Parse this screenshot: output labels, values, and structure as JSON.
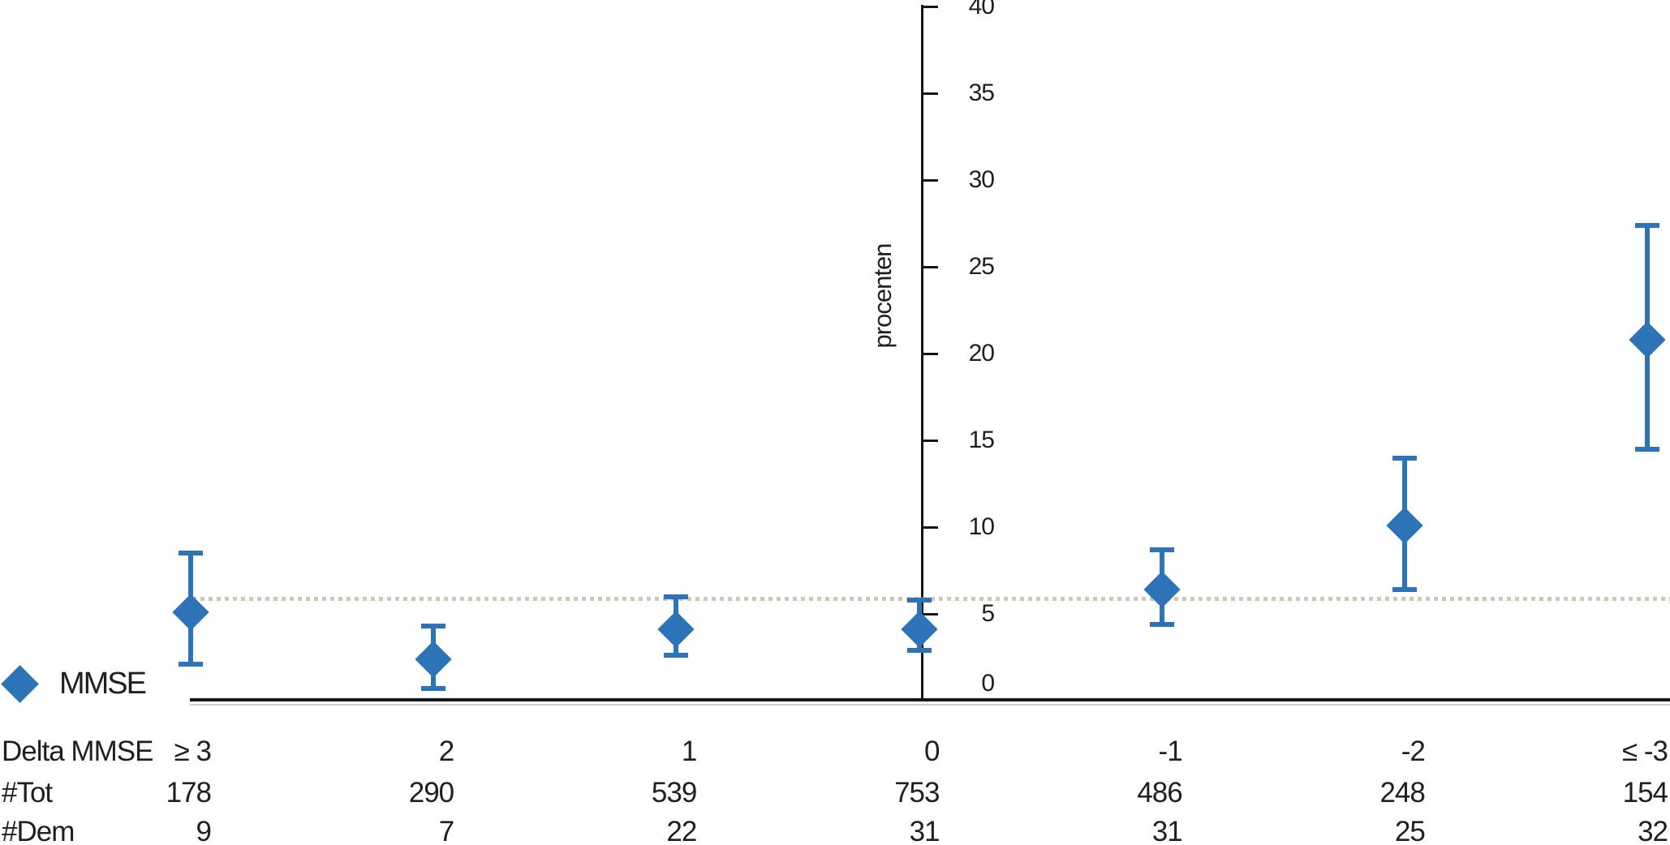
{
  "chart_data": {
    "type": "scatter",
    "title": "",
    "xlabel": "",
    "ylabel": "procenten",
    "ylim": [
      0,
      40
    ],
    "yticks": [
      40,
      35,
      30,
      25,
      20,
      15,
      10,
      5,
      0
    ],
    "grid": false,
    "legend_position": "bottom-left",
    "categories": [
      "≥ 3",
      "2",
      "1",
      "0",
      "-1",
      "-2",
      "≤ -3"
    ],
    "series": [
      {
        "name": "MMSE",
        "marker": "diamond",
        "color": "#2c73b8",
        "means": [
          5.1,
          2.4,
          4.1,
          4.1,
          6.4,
          10.1,
          20.8
        ],
        "ci_low": [
          2.1,
          0.7,
          2.6,
          2.9,
          4.4,
          6.4,
          14.5
        ],
        "ci_high": [
          8.5,
          4.3,
          6.0,
          5.8,
          8.7,
          14.0,
          27.4
        ]
      }
    ],
    "reference_line": {
      "value": 5.9,
      "style": "dotted",
      "color": "#cfc7b6"
    },
    "legend": {
      "label": "MMSE"
    },
    "table": {
      "rows": [
        {
          "label": "Delta MMSE",
          "values": [
            "≥ 3",
            "2",
            "1",
            "0",
            "-1",
            "-2",
            "≤ -3"
          ]
        },
        {
          "label": "#Tot",
          "values": [
            "178",
            "290",
            "539",
            "753",
            "486",
            "248",
            "154"
          ]
        },
        {
          "label": "#Dem",
          "values": [
            "9",
            "7",
            "22",
            "31",
            "31",
            "25",
            "32"
          ]
        }
      ]
    }
  },
  "colors": {
    "accent_blue": "#2c73b8",
    "reference_dotted": "#cfc7b6",
    "axis_black": "#161616"
  }
}
